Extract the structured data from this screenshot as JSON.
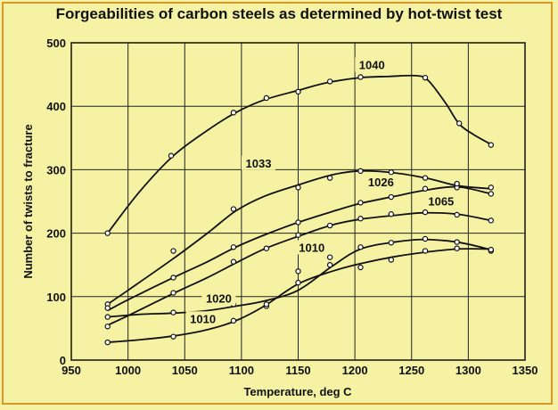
{
  "chart_data": {
    "type": "line",
    "title": "Forgeabilities of carbon steels as determined by hot-twist test",
    "xlabel": "Temperature, deg C",
    "ylabel": "Number of twists to fracture",
    "xlim": [
      950,
      1350
    ],
    "ylim": [
      0,
      500
    ],
    "xticks": [
      950,
      1000,
      1050,
      1100,
      1150,
      1200,
      1250,
      1300,
      1350
    ],
    "yticks": [
      0,
      100,
      200,
      300,
      400,
      500
    ],
    "grid": true,
    "series": [
      {
        "name": "1040",
        "curve": [
          [
            982,
            200
          ],
          [
            1010,
            265
          ],
          [
            1040,
            322
          ],
          [
            1070,
            362
          ],
          [
            1095,
            390
          ],
          [
            1120,
            410
          ],
          [
            1150,
            425
          ],
          [
            1175,
            437
          ],
          [
            1205,
            445
          ],
          [
            1230,
            447
          ],
          [
            1255,
            448
          ],
          [
            1265,
            440
          ],
          [
            1280,
            405
          ],
          [
            1292,
            372
          ],
          [
            1305,
            355
          ],
          [
            1320,
            340
          ]
        ],
        "points": [
          [
            982,
            200
          ],
          [
            1038,
            322
          ],
          [
            1093,
            390
          ],
          [
            1122,
            413
          ],
          [
            1150,
            423
          ],
          [
            1178,
            439
          ],
          [
            1205,
            446
          ],
          [
            1262,
            445
          ],
          [
            1292,
            373
          ],
          [
            1320,
            339
          ]
        ]
      },
      {
        "name": "1033",
        "curve": [
          [
            982,
            88
          ],
          [
            1000,
            110
          ],
          [
            1040,
            160
          ],
          [
            1070,
            200
          ],
          [
            1095,
            235
          ],
          [
            1120,
            258
          ],
          [
            1150,
            276
          ],
          [
            1180,
            292
          ],
          [
            1205,
            298
          ],
          [
            1235,
            295
          ],
          [
            1265,
            286
          ],
          [
            1290,
            275
          ],
          [
            1320,
            270
          ]
        ],
        "points": [
          [
            982,
            88
          ],
          [
            1040,
            172
          ],
          [
            1093,
            238
          ],
          [
            1150,
            272
          ],
          [
            1178,
            287
          ],
          [
            1205,
            298
          ],
          [
            1232,
            296
          ],
          [
            1262,
            287
          ],
          [
            1290,
            272
          ],
          [
            1320,
            272
          ]
        ]
      },
      {
        "name": "1026",
        "curve": [
          [
            982,
            78
          ],
          [
            1000,
            95
          ],
          [
            1040,
            130
          ],
          [
            1070,
            155
          ],
          [
            1095,
            178
          ],
          [
            1120,
            197
          ],
          [
            1150,
            217
          ],
          [
            1180,
            234
          ],
          [
            1205,
            247
          ],
          [
            1235,
            258
          ],
          [
            1260,
            267
          ],
          [
            1290,
            273
          ],
          [
            1320,
            262
          ]
        ],
        "points": [
          [
            982,
            82
          ],
          [
            1040,
            130
          ],
          [
            1093,
            178
          ],
          [
            1150,
            217
          ],
          [
            1205,
            248
          ],
          [
            1232,
            257
          ],
          [
            1262,
            270
          ],
          [
            1290,
            278
          ],
          [
            1320,
            262
          ]
        ]
      },
      {
        "name": "1065",
        "curve": [
          [
            982,
            55
          ],
          [
            1000,
            70
          ],
          [
            1040,
            105
          ],
          [
            1070,
            130
          ],
          [
            1095,
            153
          ],
          [
            1120,
            175
          ],
          [
            1150,
            195
          ],
          [
            1180,
            213
          ],
          [
            1205,
            222
          ],
          [
            1235,
            228
          ],
          [
            1260,
            232
          ],
          [
            1290,
            230
          ],
          [
            1320,
            220
          ]
        ],
        "points": [
          [
            982,
            53
          ],
          [
            1040,
            106
          ],
          [
            1093,
            155
          ],
          [
            1122,
            176
          ],
          [
            1150,
            197
          ],
          [
            1178,
            212
          ],
          [
            1205,
            223
          ],
          [
            1232,
            230
          ],
          [
            1262,
            233
          ],
          [
            1290,
            229
          ],
          [
            1320,
            220
          ]
        ]
      },
      {
        "name": "1020",
        "curve": [
          [
            982,
            68
          ],
          [
            1010,
            72
          ],
          [
            1040,
            74
          ],
          [
            1070,
            78
          ],
          [
            1095,
            85
          ],
          [
            1120,
            93
          ],
          [
            1150,
            110
          ],
          [
            1180,
            148
          ],
          [
            1205,
            175
          ],
          [
            1235,
            186
          ],
          [
            1260,
            190
          ],
          [
            1290,
            186
          ],
          [
            1320,
            174
          ]
        ],
        "points": [
          [
            982,
            68
          ],
          [
            1040,
            75
          ],
          [
            1093,
            88
          ],
          [
            1122,
            85
          ],
          [
            1150,
            140
          ],
          [
            1178,
            162
          ],
          [
            1205,
            178
          ],
          [
            1232,
            185
          ],
          [
            1262,
            191
          ],
          [
            1290,
            186
          ],
          [
            1320,
            172
          ]
        ]
      },
      {
        "name": "1010",
        "curve": [
          [
            982,
            28
          ],
          [
            1010,
            32
          ],
          [
            1040,
            38
          ],
          [
            1070,
            48
          ],
          [
            1095,
            62
          ],
          [
            1120,
            85
          ],
          [
            1150,
            120
          ],
          [
            1180,
            140
          ],
          [
            1205,
            152
          ],
          [
            1235,
            163
          ],
          [
            1262,
            170
          ],
          [
            1290,
            175
          ],
          [
            1320,
            175
          ]
        ],
        "points": [
          [
            982,
            28
          ],
          [
            1040,
            37
          ],
          [
            1093,
            62
          ],
          [
            1122,
            88
          ],
          [
            1150,
            122
          ],
          [
            1178,
            150
          ],
          [
            1205,
            146
          ],
          [
            1232,
            158
          ],
          [
            1262,
            172
          ],
          [
            1290,
            176
          ],
          [
            1320,
            174
          ]
        ]
      }
    ],
    "annotations": [
      {
        "text": "1040",
        "x": 1215,
        "y": 460
      },
      {
        "text": "1033",
        "x": 1115,
        "y": 305
      },
      {
        "text": "1026",
        "x": 1223,
        "y": 275
      },
      {
        "text": "1065",
        "x": 1276,
        "y": 245
      },
      {
        "text": "1010",
        "x": 1162,
        "y": 172
      },
      {
        "text": "1020",
        "x": 1080,
        "y": 92
      },
      {
        "text": "1010",
        "x": 1066,
        "y": 60
      }
    ]
  }
}
